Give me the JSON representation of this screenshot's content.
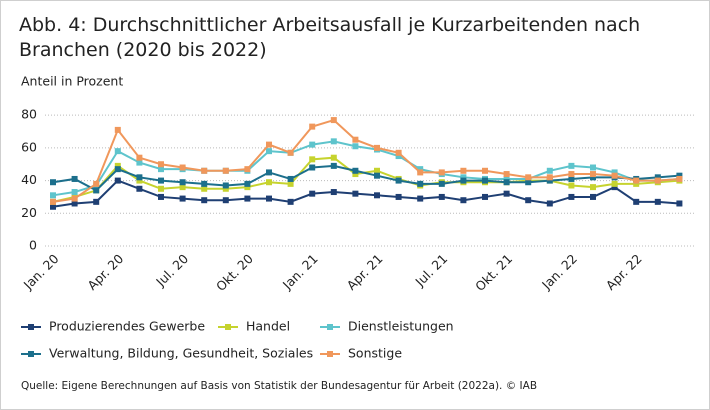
{
  "chart_data": {
    "type": "line",
    "title": "Abb. 4: Durchschnittlicher Arbeitsausfall je Kurzarbeitenden nach Branchen (2020 bis 2022)",
    "y_label": "Anteil in Prozent",
    "source": "Quelle: Eigene Berechnungen auf Basis von Statistik der Bundesagentur für Arbeit (2022a). © IAB",
    "categories": [
      "Jan. 20",
      null,
      null,
      "Apr. 20",
      null,
      null,
      "Jul. 20",
      null,
      null,
      "Okt. 20",
      null,
      null,
      "Jan. 21",
      null,
      null,
      "Apr. 21",
      null,
      null,
      "Jul. 21",
      null,
      null,
      "Okt. 21",
      null,
      null,
      "Jan. 22",
      null,
      null,
      "Apr. 22",
      null,
      null
    ],
    "ylim": [
      0,
      85
    ],
    "yticks": [
      0,
      20,
      40,
      60,
      80
    ],
    "grid": true,
    "series": [
      {
        "name": "Produzierendes Gewerbe",
        "color": "#1f3f73",
        "values": [
          24,
          26,
          27,
          40,
          35,
          30,
          29,
          28,
          28,
          29,
          29,
          27,
          32,
          33,
          32,
          31,
          30,
          29,
          30,
          28,
          30,
          32,
          28,
          26,
          30,
          30,
          36,
          27,
          27,
          26
        ]
      },
      {
        "name": "Handel",
        "color": "#c6d32e",
        "values": [
          27,
          30,
          34,
          49,
          40,
          35,
          36,
          35,
          35,
          36,
          39,
          38,
          53,
          54,
          44,
          46,
          41,
          37,
          39,
          39,
          39,
          39,
          40,
          40,
          37,
          36,
          38,
          38,
          39,
          40
        ]
      },
      {
        "name": "Dienstleistungen",
        "color": "#5ec4cc",
        "values": [
          31,
          33,
          37,
          58,
          51,
          47,
          47,
          46,
          46,
          46,
          58,
          57,
          62,
          64,
          61,
          59,
          55,
          47,
          44,
          42,
          41,
          41,
          41,
          46,
          49,
          48,
          45,
          40,
          40,
          41
        ]
      },
      {
        "name": "Verwaltung, Bildung, Gesundheit, Soziales",
        "color": "#1c6f8c",
        "values": [
          39,
          41,
          34,
          47,
          42,
          40,
          39,
          38,
          37,
          38,
          45,
          41,
          48,
          49,
          46,
          43,
          40,
          38,
          38,
          40,
          40,
          39,
          39,
          40,
          41,
          42,
          42,
          41,
          42,
          43
        ]
      },
      {
        "name": "Sonstige",
        "color": "#f0975b",
        "values": [
          27,
          29,
          38,
          71,
          54,
          50,
          48,
          46,
          46,
          47,
          62,
          57,
          73,
          77,
          65,
          60,
          57,
          45,
          45,
          46,
          46,
          44,
          42,
          42,
          44,
          44,
          43,
          40,
          40,
          41
        ]
      }
    ]
  }
}
